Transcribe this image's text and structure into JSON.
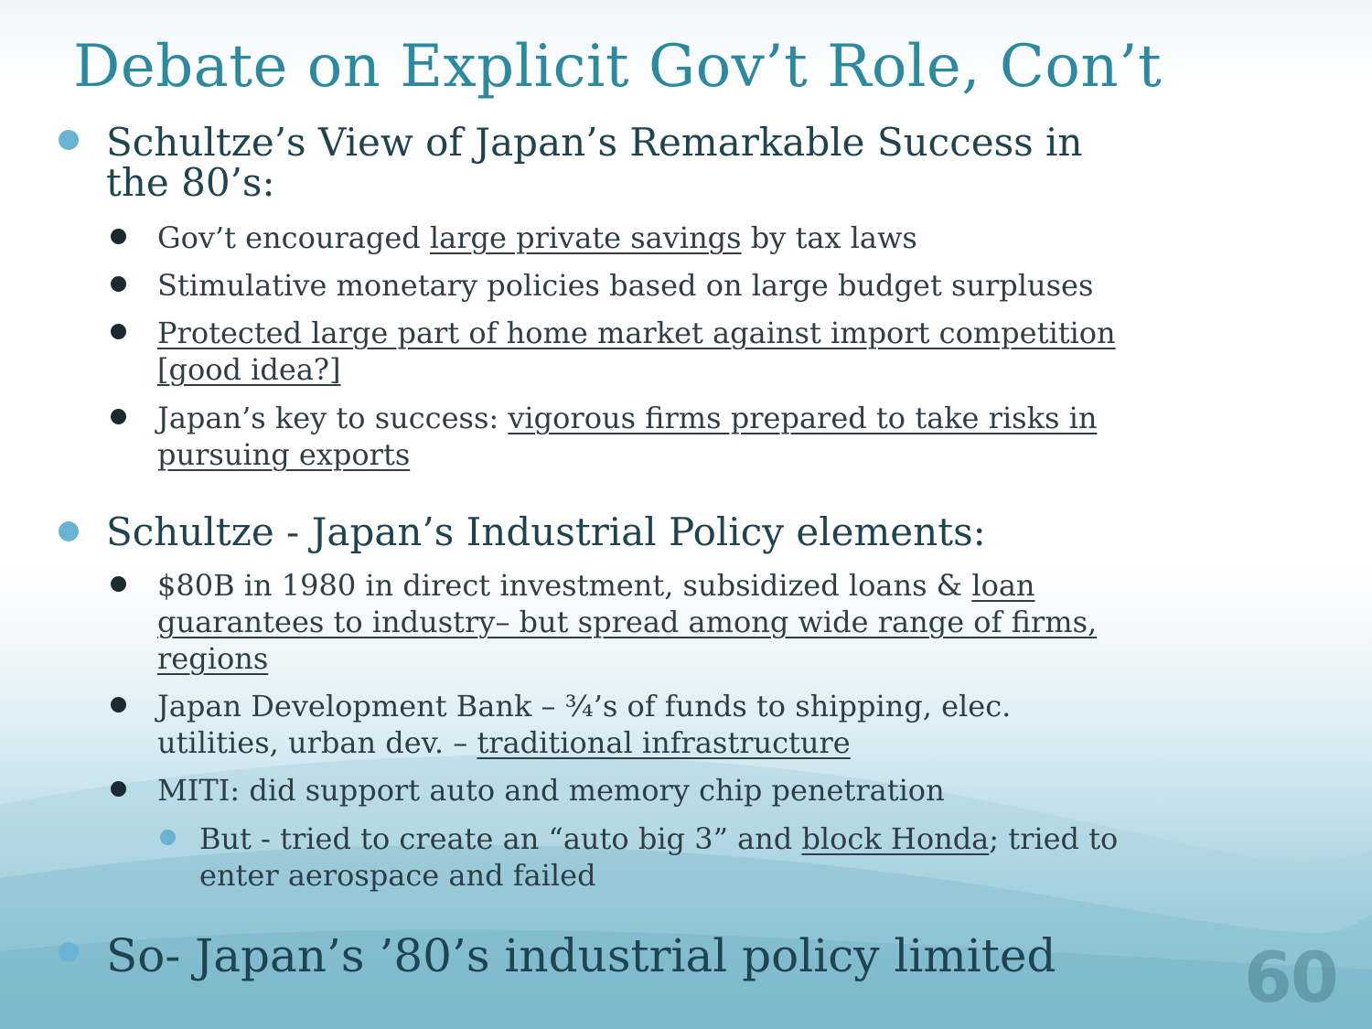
{
  "slide": {
    "title": "Debate on Explicit Gov’t Role, Con’t",
    "page_number": "60"
  },
  "section1": {
    "heading": "Schultze’s View of Japan’s Remarkable Success in the 80’s:",
    "items": [
      {
        "pre": "Gov’t encouraged ",
        "link": "large private savings",
        "post": " by tax laws"
      },
      {
        "text": "Stimulative monetary policies based on large budget surpluses"
      },
      {
        "link": "Protected large part of home market against import competition [good idea?]"
      },
      {
        "pre": "Japan’s key to success:  ",
        "link": "vigorous firms prepared to take risks in pursuing exports"
      }
    ]
  },
  "section2": {
    "heading": "Schultze - Japan’s Industrial Policy elements:",
    "items": [
      {
        "pre": "$80B in 1980 in direct investment, subsidized loans & ",
        "link": "loan guarantees to industry– but spread among wide range of firms, regions"
      },
      {
        "pre": "Japan Development Bank – ¾’s of funds to shipping, elec. utilities, urban dev. – ",
        "link": "traditional infrastructure"
      },
      {
        "text": "MITI: did support auto and memory chip penetration"
      }
    ],
    "sub_item": {
      "pre": "But - tried to create an “auto big 3” and ",
      "link": "block Honda",
      "post": "; tried to enter aerospace and failed"
    }
  },
  "conclusion": {
    "text": "So- Japan’s ’80’s industrial policy limited"
  },
  "colors": {
    "title": "#2b8aa0",
    "bullet_primary": "#69b4d2",
    "bullet_secondary": "#1a2a30",
    "text": "#2e3e44"
  }
}
